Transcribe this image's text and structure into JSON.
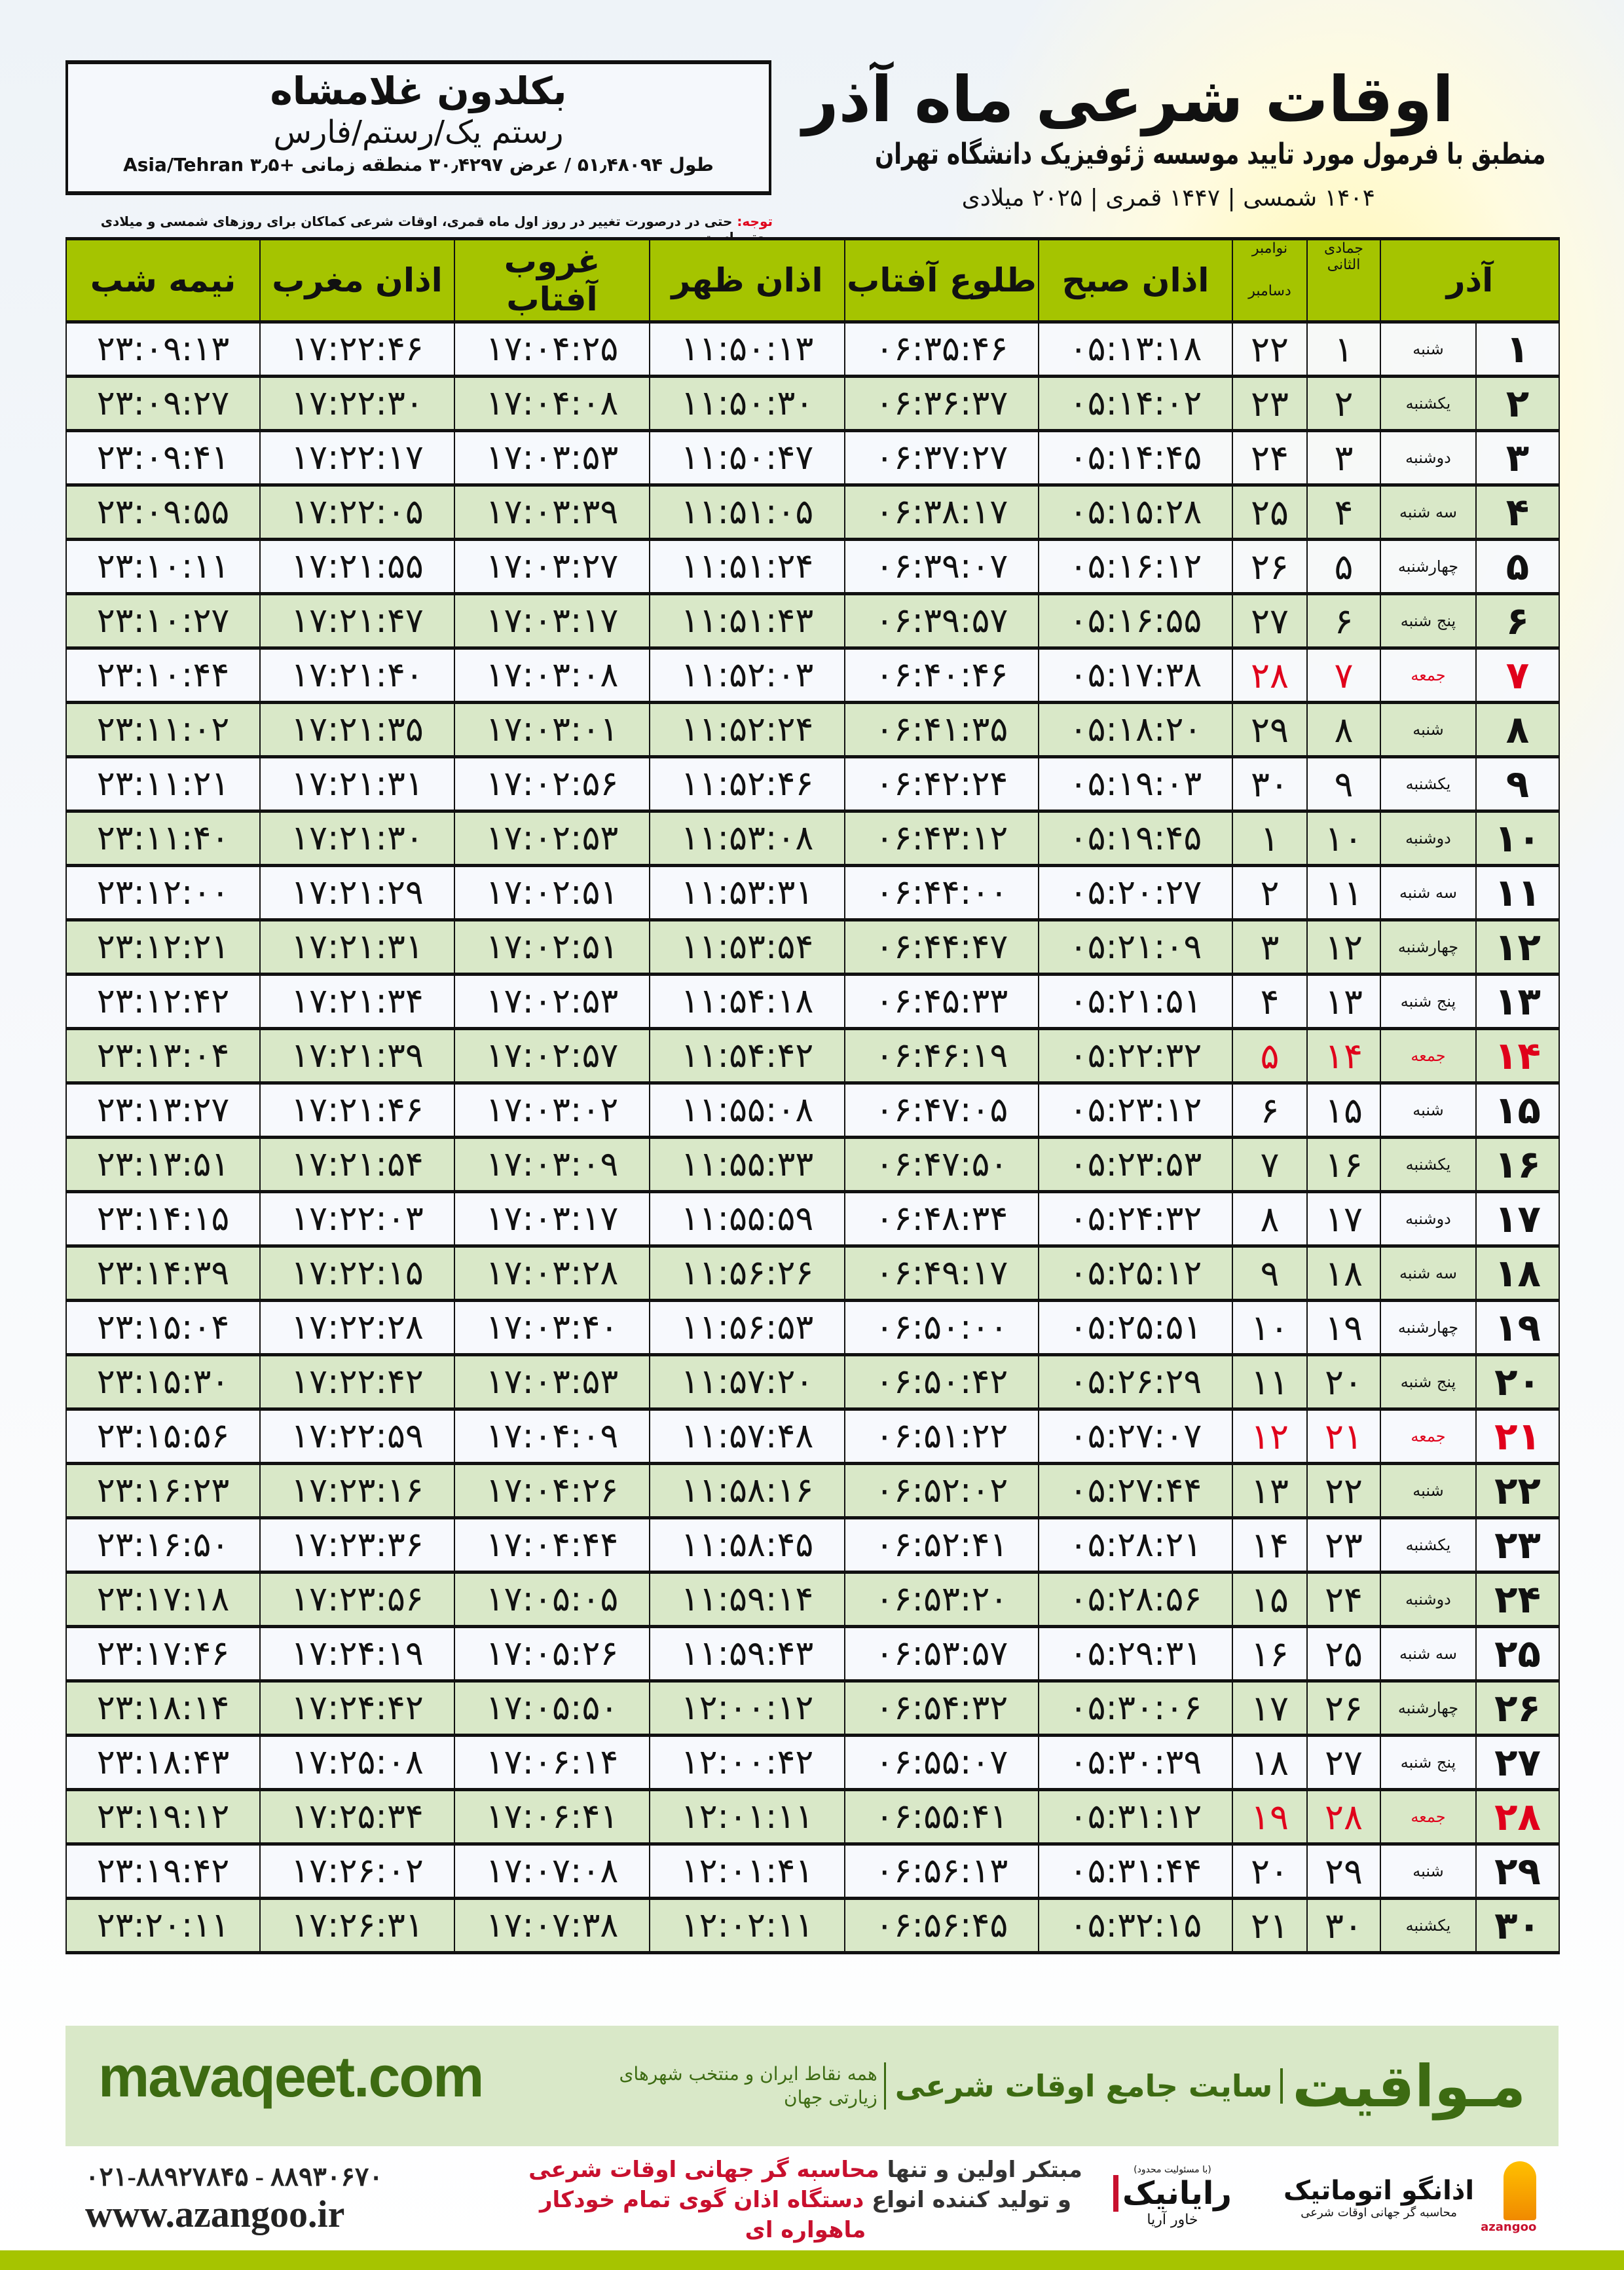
{
  "header": {
    "title": "اوقات شرعی ماه آذر",
    "subtitle": "منطبق با فرمول مورد تایید موسسه ژئوفیزیک دانشگاه تهران",
    "dates": "۱۴۰۴ شمسی | ۱۴۴۷ قمری | ۲۰۲۵ میلادی"
  },
  "location": {
    "city": "بکلدون غلامشاه",
    "region": "رستم یک/رستم/فارس",
    "coords": "طول ۵۱٫۴۸۰۹۴ / عرض ۳۰٫۴۲۹۷ منطقه زمانی +۳٫۵ Asia/Tehran"
  },
  "note": {
    "label": "توجه:",
    "text": " حتی در درصورت تغییر در روز اول ماه قمری، اوقات شرعی کماکان برای روزهای شمسی و میلادی معتبر است."
  },
  "table": {
    "columns": {
      "day": "آذر",
      "hijri": "جمادی الثانی",
      "gregorian_top": "نوامبر",
      "gregorian_bottom": "دسامبر",
      "fajr": "اذان صبح",
      "sunrise": "طلوع آفتاب",
      "dhuhr": "اذان ظهر",
      "sunset": "غروب آفتاب",
      "maghrib": "اذان مغرب",
      "midnight": "نیمه شب"
    },
    "holiday_color": "#e0001b",
    "header_color": "#a5c400",
    "rows": [
      {
        "day": "۱",
        "weekday": "شنبه",
        "hijri": "۱",
        "gregorian": "۲۲",
        "times": [
          "۰۵:۱۳:۱۸",
          "۰۶:۳۵:۴۶",
          "۱۱:۵۰:۱۳",
          "۱۷:۰۴:۲۵",
          "۱۷:۲۲:۴۶",
          "۲۳:۰۹:۱۳"
        ]
      },
      {
        "day": "۲",
        "weekday": "یکشنبه",
        "hijri": "۲",
        "gregorian": "۲۳",
        "times": [
          "۰۵:۱۴:۰۲",
          "۰۶:۳۶:۳۷",
          "۱۱:۵۰:۳۰",
          "۱۷:۰۴:۰۸",
          "۱۷:۲۲:۳۰",
          "۲۳:۰۹:۲۷"
        ]
      },
      {
        "day": "۳",
        "weekday": "دوشنبه",
        "hijri": "۳",
        "gregorian": "۲۴",
        "times": [
          "۰۵:۱۴:۴۵",
          "۰۶:۳۷:۲۷",
          "۱۱:۵۰:۴۷",
          "۱۷:۰۳:۵۳",
          "۱۷:۲۲:۱۷",
          "۲۳:۰۹:۴۱"
        ]
      },
      {
        "day": "۴",
        "weekday": "سه شنبه",
        "hijri": "۴",
        "gregorian": "۲۵",
        "times": [
          "۰۵:۱۵:۲۸",
          "۰۶:۳۸:۱۷",
          "۱۱:۵۱:۰۵",
          "۱۷:۰۳:۳۹",
          "۱۷:۲۲:۰۵",
          "۲۳:۰۹:۵۵"
        ]
      },
      {
        "day": "۵",
        "weekday": "چهارشنبه",
        "hijri": "۵",
        "gregorian": "۲۶",
        "times": [
          "۰۵:۱۶:۱۲",
          "۰۶:۳۹:۰۷",
          "۱۱:۵۱:۲۴",
          "۱۷:۰۳:۲۷",
          "۱۷:۲۱:۵۵",
          "۲۳:۱۰:۱۱"
        ]
      },
      {
        "day": "۶",
        "weekday": "پنج شنبه",
        "hijri": "۶",
        "gregorian": "۲۷",
        "times": [
          "۰۵:۱۶:۵۵",
          "۰۶:۳۹:۵۷",
          "۱۱:۵۱:۴۳",
          "۱۷:۰۳:۱۷",
          "۱۷:۲۱:۴۷",
          "۲۳:۱۰:۲۷"
        ]
      },
      {
        "day": "۷",
        "weekday": "جمعه",
        "hijri": "۷",
        "gregorian": "۲۸",
        "holiday": true,
        "times": [
          "۰۵:۱۷:۳۸",
          "۰۶:۴۰:۴۶",
          "۱۱:۵۲:۰۳",
          "۱۷:۰۳:۰۸",
          "۱۷:۲۱:۴۰",
          "۲۳:۱۰:۴۴"
        ]
      },
      {
        "day": "۸",
        "weekday": "شنبه",
        "hijri": "۸",
        "gregorian": "۲۹",
        "times": [
          "۰۵:۱۸:۲۰",
          "۰۶:۴۱:۳۵",
          "۱۱:۵۲:۲۴",
          "۱۷:۰۳:۰۱",
          "۱۷:۲۱:۳۵",
          "۲۳:۱۱:۰۲"
        ]
      },
      {
        "day": "۹",
        "weekday": "یکشنبه",
        "hijri": "۹",
        "gregorian": "۳۰",
        "times": [
          "۰۵:۱۹:۰۳",
          "۰۶:۴۲:۲۴",
          "۱۱:۵۲:۴۶",
          "۱۷:۰۲:۵۶",
          "۱۷:۲۱:۳۱",
          "۲۳:۱۱:۲۱"
        ]
      },
      {
        "day": "۱۰",
        "weekday": "دوشنبه",
        "hijri": "۱۰",
        "gregorian": "۱",
        "times": [
          "۰۵:۱۹:۴۵",
          "۰۶:۴۳:۱۲",
          "۱۱:۵۳:۰۸",
          "۱۷:۰۲:۵۳",
          "۱۷:۲۱:۳۰",
          "۲۳:۱۱:۴۰"
        ]
      },
      {
        "day": "۱۱",
        "weekday": "سه شنبه",
        "hijri": "۱۱",
        "gregorian": "۲",
        "times": [
          "۰۵:۲۰:۲۷",
          "۰۶:۴۴:۰۰",
          "۱۱:۵۳:۳۱",
          "۱۷:۰۲:۵۱",
          "۱۷:۲۱:۲۹",
          "۲۳:۱۲:۰۰"
        ]
      },
      {
        "day": "۱۲",
        "weekday": "چهارشنبه",
        "hijri": "۱۲",
        "gregorian": "۳",
        "times": [
          "۰۵:۲۱:۰۹",
          "۰۶:۴۴:۴۷",
          "۱۱:۵۳:۵۴",
          "۱۷:۰۲:۵۱",
          "۱۷:۲۱:۳۱",
          "۲۳:۱۲:۲۱"
        ]
      },
      {
        "day": "۱۳",
        "weekday": "پنج شنبه",
        "hijri": "۱۳",
        "gregorian": "۴",
        "times": [
          "۰۵:۲۱:۵۱",
          "۰۶:۴۵:۳۳",
          "۱۱:۵۴:۱۸",
          "۱۷:۰۲:۵۳",
          "۱۷:۲۱:۳۴",
          "۲۳:۱۲:۴۲"
        ]
      },
      {
        "day": "۱۴",
        "weekday": "جمعه",
        "hijri": "۱۴",
        "gregorian": "۵",
        "holiday": true,
        "times": [
          "۰۵:۲۲:۳۲",
          "۰۶:۴۶:۱۹",
          "۱۱:۵۴:۴۲",
          "۱۷:۰۲:۵۷",
          "۱۷:۲۱:۳۹",
          "۲۳:۱۳:۰۴"
        ]
      },
      {
        "day": "۱۵",
        "weekday": "شنبه",
        "hijri": "۱۵",
        "gregorian": "۶",
        "times": [
          "۰۵:۲۳:۱۲",
          "۰۶:۴۷:۰۵",
          "۱۱:۵۵:۰۸",
          "۱۷:۰۳:۰۲",
          "۱۷:۲۱:۴۶",
          "۲۳:۱۳:۲۷"
        ]
      },
      {
        "day": "۱۶",
        "weekday": "یکشنبه",
        "hijri": "۱۶",
        "gregorian": "۷",
        "times": [
          "۰۵:۲۳:۵۳",
          "۰۶:۴۷:۵۰",
          "۱۱:۵۵:۳۳",
          "۱۷:۰۳:۰۹",
          "۱۷:۲۱:۵۴",
          "۲۳:۱۳:۵۱"
        ]
      },
      {
        "day": "۱۷",
        "weekday": "دوشنبه",
        "hijri": "۱۷",
        "gregorian": "۸",
        "times": [
          "۰۵:۲۴:۳۲",
          "۰۶:۴۸:۳۴",
          "۱۱:۵۵:۵۹",
          "۱۷:۰۳:۱۷",
          "۱۷:۲۲:۰۳",
          "۲۳:۱۴:۱۵"
        ]
      },
      {
        "day": "۱۸",
        "weekday": "سه شنبه",
        "hijri": "۱۸",
        "gregorian": "۹",
        "times": [
          "۰۵:۲۵:۱۲",
          "۰۶:۴۹:۱۷",
          "۱۱:۵۶:۲۶",
          "۱۷:۰۳:۲۸",
          "۱۷:۲۲:۱۵",
          "۲۳:۱۴:۳۹"
        ]
      },
      {
        "day": "۱۹",
        "weekday": "چهارشنبه",
        "hijri": "۱۹",
        "gregorian": "۱۰",
        "times": [
          "۰۵:۲۵:۵۱",
          "۰۶:۵۰:۰۰",
          "۱۱:۵۶:۵۳",
          "۱۷:۰۳:۴۰",
          "۱۷:۲۲:۲۸",
          "۲۳:۱۵:۰۴"
        ]
      },
      {
        "day": "۲۰",
        "weekday": "پنج شنبه",
        "hijri": "۲۰",
        "gregorian": "۱۱",
        "times": [
          "۰۵:۲۶:۲۹",
          "۰۶:۵۰:۴۲",
          "۱۱:۵۷:۲۰",
          "۱۷:۰۳:۵۳",
          "۱۷:۲۲:۴۲",
          "۲۳:۱۵:۳۰"
        ]
      },
      {
        "day": "۲۱",
        "weekday": "جمعه",
        "hijri": "۲۱",
        "gregorian": "۱۲",
        "holiday": true,
        "times": [
          "۰۵:۲۷:۰۷",
          "۰۶:۵۱:۲۲",
          "۱۱:۵۷:۴۸",
          "۱۷:۰۴:۰۹",
          "۱۷:۲۲:۵۹",
          "۲۳:۱۵:۵۶"
        ]
      },
      {
        "day": "۲۲",
        "weekday": "شنبه",
        "hijri": "۲۲",
        "gregorian": "۱۳",
        "times": [
          "۰۵:۲۷:۴۴",
          "۰۶:۵۲:۰۲",
          "۱۱:۵۸:۱۶",
          "۱۷:۰۴:۲۶",
          "۱۷:۲۳:۱۶",
          "۲۳:۱۶:۲۳"
        ]
      },
      {
        "day": "۲۳",
        "weekday": "یکشنبه",
        "hijri": "۲۳",
        "gregorian": "۱۴",
        "times": [
          "۰۵:۲۸:۲۱",
          "۰۶:۵۲:۴۱",
          "۱۱:۵۸:۴۵",
          "۱۷:۰۴:۴۴",
          "۱۷:۲۳:۳۶",
          "۲۳:۱۶:۵۰"
        ]
      },
      {
        "day": "۲۴",
        "weekday": "دوشنبه",
        "hijri": "۲۴",
        "gregorian": "۱۵",
        "times": [
          "۰۵:۲۸:۵۶",
          "۰۶:۵۳:۲۰",
          "۱۱:۵۹:۱۴",
          "۱۷:۰۵:۰۵",
          "۱۷:۲۳:۵۶",
          "۲۳:۱۷:۱۸"
        ]
      },
      {
        "day": "۲۵",
        "weekday": "سه شنبه",
        "hijri": "۲۵",
        "gregorian": "۱۶",
        "times": [
          "۰۵:۲۹:۳۱",
          "۰۶:۵۳:۵۷",
          "۱۱:۵۹:۴۳",
          "۱۷:۰۵:۲۶",
          "۱۷:۲۴:۱۹",
          "۲۳:۱۷:۴۶"
        ]
      },
      {
        "day": "۲۶",
        "weekday": "چهارشنبه",
        "hijri": "۲۶",
        "gregorian": "۱۷",
        "times": [
          "۰۵:۳۰:۰۶",
          "۰۶:۵۴:۳۲",
          "۱۲:۰۰:۱۲",
          "۱۷:۰۵:۵۰",
          "۱۷:۲۴:۴۲",
          "۲۳:۱۸:۱۴"
        ]
      },
      {
        "day": "۲۷",
        "weekday": "پنج شنبه",
        "hijri": "۲۷",
        "gregorian": "۱۸",
        "times": [
          "۰۵:۳۰:۳۹",
          "۰۶:۵۵:۰۷",
          "۱۲:۰۰:۴۲",
          "۱۷:۰۶:۱۴",
          "۱۷:۲۵:۰۸",
          "۲۳:۱۸:۴۳"
        ]
      },
      {
        "day": "۲۸",
        "weekday": "جمعه",
        "hijri": "۲۸",
        "gregorian": "۱۹",
        "holiday": true,
        "times": [
          "۰۵:۳۱:۱۲",
          "۰۶:۵۵:۴۱",
          "۱۲:۰۱:۱۱",
          "۱۷:۰۶:۴۱",
          "۱۷:۲۵:۳۴",
          "۲۳:۱۹:۱۲"
        ]
      },
      {
        "day": "۲۹",
        "weekday": "شنبه",
        "hijri": "۲۹",
        "gregorian": "۲۰",
        "times": [
          "۰۵:۳۱:۴۴",
          "۰۶:۵۶:۱۳",
          "۱۲:۰۱:۴۱",
          "۱۷:۰۷:۰۸",
          "۱۷:۲۶:۰۲",
          "۲۳:۱۹:۴۲"
        ]
      },
      {
        "day": "۳۰",
        "weekday": "یکشنبه",
        "hijri": "۳۰",
        "gregorian": "۲۱",
        "times": [
          "۰۵:۳۲:۱۵",
          "۰۶:۵۶:۴۵",
          "۱۲:۰۲:۱۱",
          "۱۷:۰۷:۳۸",
          "۱۷:۲۶:۳۱",
          "۲۳:۲۰:۱۱"
        ]
      }
    ]
  },
  "footer": {
    "brand_logo": "مـواقیت",
    "brand_slogan": "سایت جامع اوقات شرعی",
    "brand_sub": "همه نقاط ایران و منتخب شهرهای زیارتی جهان",
    "site_url": "mavaqeet.com",
    "phone": "۰۲۱-۸۸۹۲۷۸۴۵ - ۸۸۹۳۰۶۷۰",
    "website": "www.azangoo.ir",
    "promo_line1_a": "مبتکر اولین و تنها ",
    "promo_line1_b": "محاسبه گر جهانی اوقات شرعی",
    "promo_line2_a": "و تولید کننده انواع ",
    "promo_line2_b": "دستگاه اذان گوی تمام خودکار ماهواره ای",
    "raynik_ltd": "(با مسئولیت محدود)",
    "raynik_name": "رایانیک",
    "raynik_sub": "خاور آریا",
    "azangoo_name": "اذانگو اتوماتیک",
    "azangoo_sub": "محاسبه گر جهانی اوقات شرعی",
    "azangoo_en": "azangoo",
    "accent_color": "#3d6b12",
    "bar_color": "#a6c400"
  }
}
